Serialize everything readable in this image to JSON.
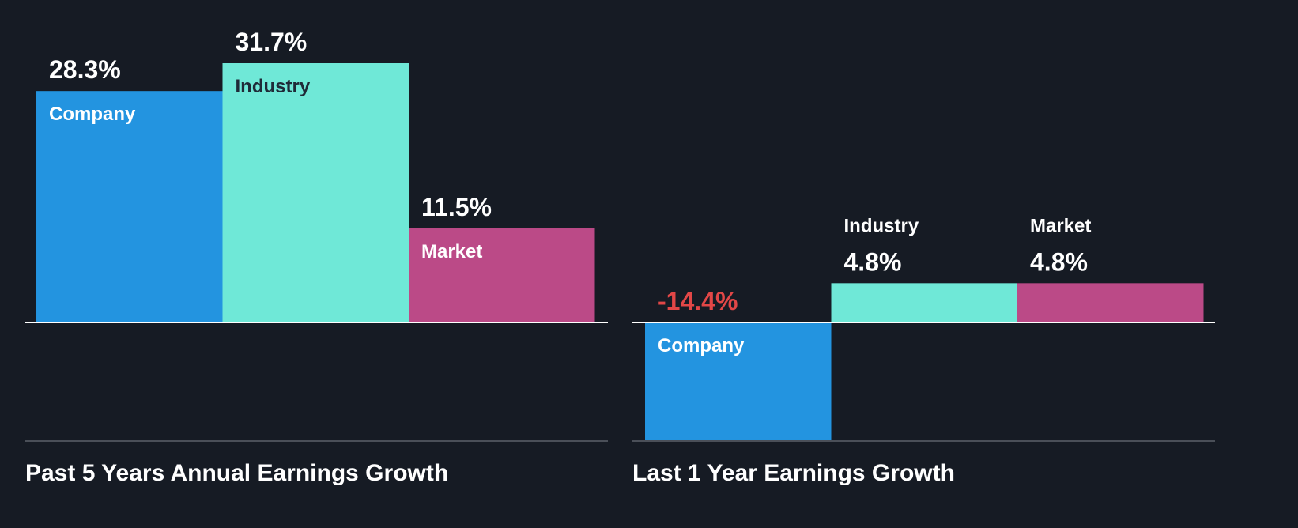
{
  "colors": {
    "background": "#161b24",
    "company": "#2394e0",
    "industry": "#6fe8d7",
    "market": "#bb4a87",
    "text_light": "#ffffff",
    "text_dark": "#1f2a38",
    "negative": "#e24747",
    "axis": "#ffffff",
    "divider": "#4a4f58"
  },
  "chart_data": [
    {
      "type": "bar",
      "title": "Past 5 Years Annual Earnings Growth",
      "categories": [
        "Company",
        "Industry",
        "Market"
      ],
      "values": [
        28.3,
        31.7,
        11.5
      ],
      "value_labels": [
        "28.3%",
        "31.7%",
        "11.5%"
      ],
      "unit": "%",
      "ylim": [
        -14.4,
        31.7
      ]
    },
    {
      "type": "bar",
      "title": "Last 1 Year Earnings Growth",
      "categories": [
        "Company",
        "Industry",
        "Market"
      ],
      "values": [
        -14.4,
        4.8,
        4.8
      ],
      "value_labels": [
        "-14.4%",
        "4.8%",
        "4.8%"
      ],
      "unit": "%",
      "ylim": [
        -14.4,
        31.7
      ]
    }
  ]
}
